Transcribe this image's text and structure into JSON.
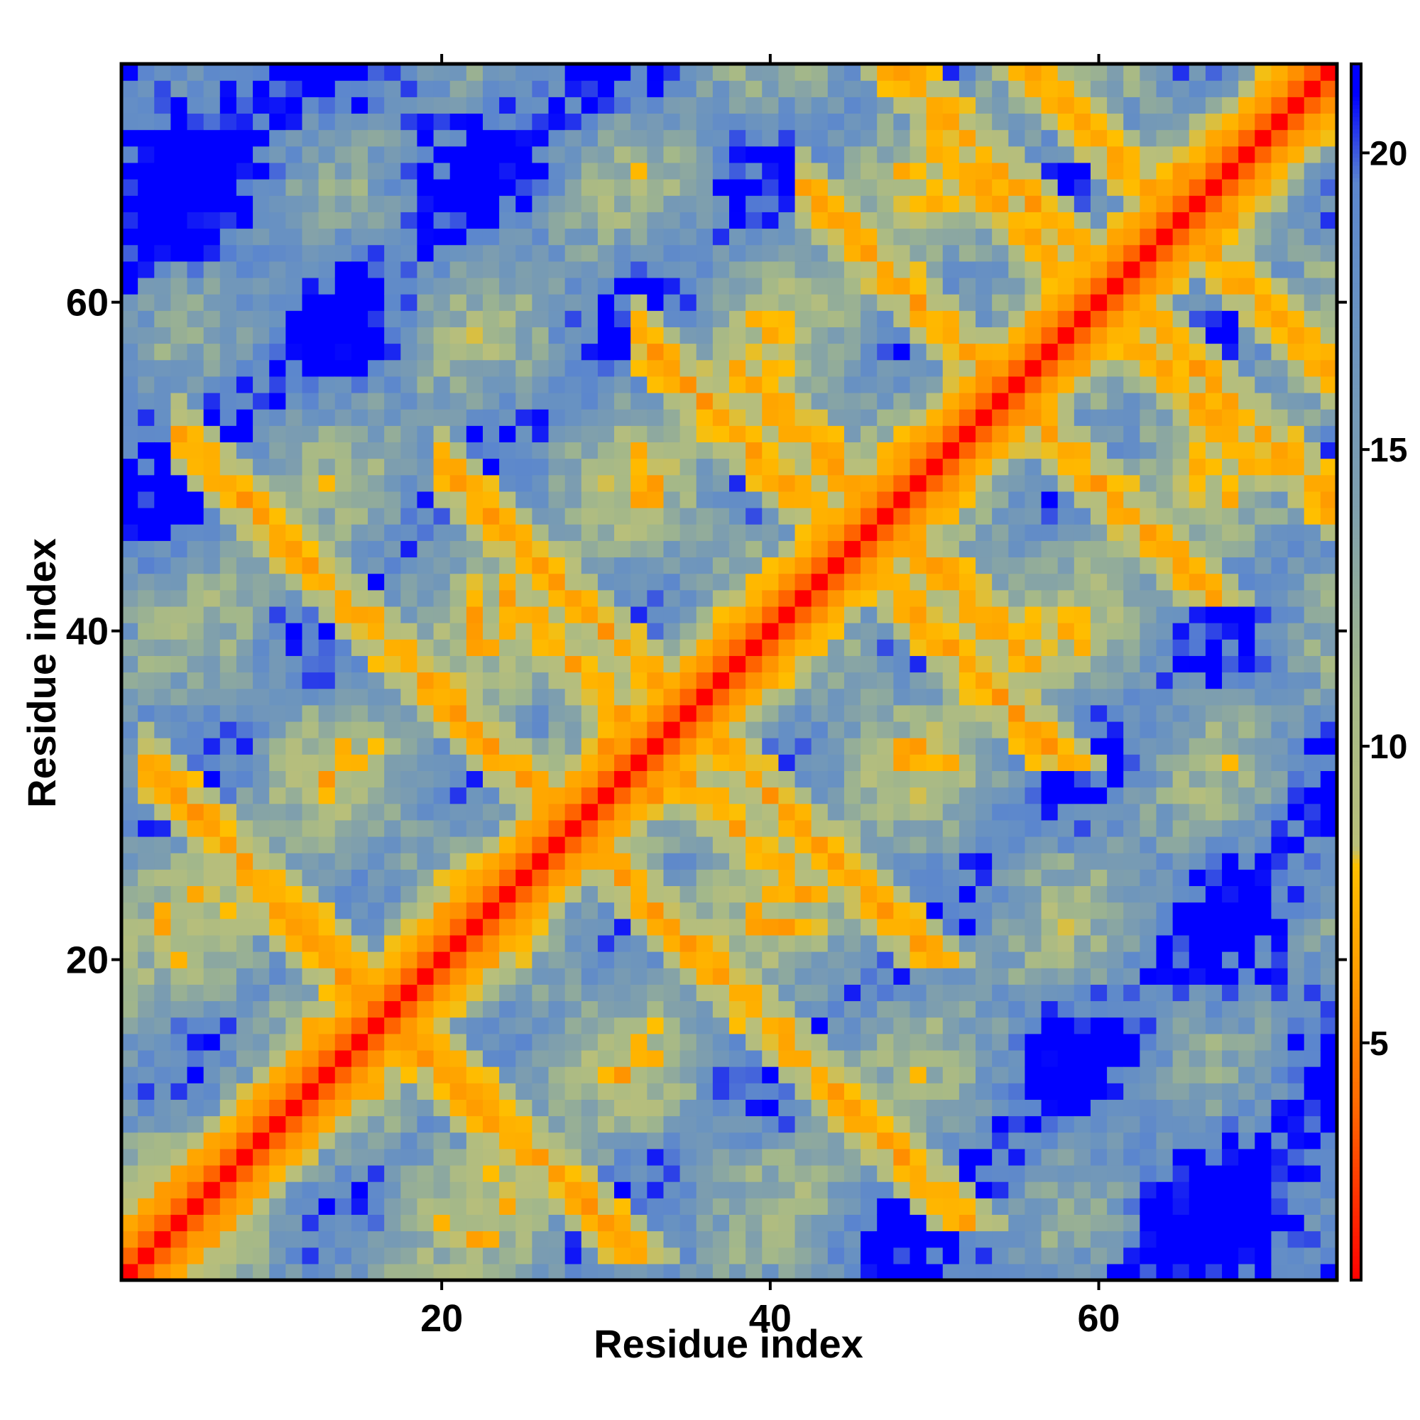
{
  "chart_data": {
    "type": "heatmap",
    "title": "",
    "xlabel": "Residue index",
    "ylabel": "Residue index",
    "n_residues": 74,
    "x_ticks": [
      20,
      40,
      60
    ],
    "y_ticks": [
      20,
      40,
      60
    ],
    "colorbar": {
      "ticks": [
        5,
        10,
        15,
        20
      ],
      "range": [
        1,
        21.5
      ],
      "stops": [
        {
          "value": 1.0,
          "color": "#ff0000"
        },
        {
          "value": 4.0,
          "color": "#ff6a00"
        },
        {
          "value": 6.0,
          "color": "#ff9900"
        },
        {
          "value": 8.0,
          "color": "#ffbf00"
        },
        {
          "value": 8.3,
          "color": "#b9bf7a"
        },
        {
          "value": 11.0,
          "color": "#a4b889"
        },
        {
          "value": 14.0,
          "color": "#7f9fad"
        },
        {
          "value": 17.0,
          "color": "#6a93c0"
        },
        {
          "value": 19.5,
          "color": "#5b86ce"
        },
        {
          "value": 21.0,
          "color": "#0000ff"
        }
      ]
    },
    "cap_value": 21,
    "note": "Symmetric residue-residue distance map; values capped at the colorbar maximum (blue)."
  }
}
